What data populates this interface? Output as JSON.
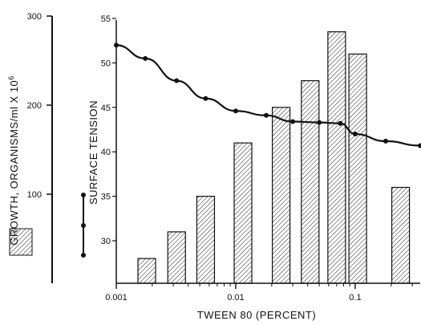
{
  "chart_data": {
    "type": "bar",
    "title": "",
    "xlabel": "TWEEN 80 (PERCENT)",
    "x_scale": "log",
    "xlim": [
      0.001,
      0.35
    ],
    "x_ticks": [
      {
        "value": 0.001,
        "label": "0.001"
      },
      {
        "value": 0.01,
        "label": "0.01"
      },
      {
        "value": 0.1,
        "label": "0.1"
      }
    ],
    "left_axis": {
      "label": "GROWTH, ORGANISMS/ml X 10",
      "label_exponent": "6",
      "range": [
        0,
        300
      ],
      "ticks": [
        {
          "value": 100,
          "label": "100"
        },
        {
          "value": 200,
          "label": "200"
        },
        {
          "value": 300,
          "label": "300"
        }
      ]
    },
    "right_axis": {
      "label": "SURFACE TENSION",
      "range": [
        25,
        55
      ],
      "ticks": [
        {
          "value": 30,
          "label": "30"
        },
        {
          "value": 35,
          "label": "35"
        },
        {
          "value": 40,
          "label": "40"
        },
        {
          "value": 45,
          "label": "45"
        },
        {
          "value": 50,
          "label": "50"
        },
        {
          "value": 55,
          "label": "55"
        }
      ]
    },
    "series": [
      {
        "type": "bar",
        "axis": "surface-tension-scale",
        "x": [
          0.0018,
          0.0032,
          0.0056,
          0.0115,
          0.024,
          0.042,
          0.07,
          0.105,
          0.24
        ],
        "values": [
          28,
          31,
          35,
          41,
          45,
          48,
          53.5,
          51,
          36
        ]
      },
      {
        "type": "line",
        "axis": "surface-tension-scale",
        "x": [
          0.001,
          0.00175,
          0.0032,
          0.0056,
          0.01,
          0.018,
          0.03,
          0.05,
          0.075,
          0.1,
          0.18,
          0.35
        ],
        "values": [
          52,
          50.5,
          48,
          46,
          44.6,
          44.1,
          43.4,
          43.3,
          43.2,
          42,
          41.2,
          40.7
        ]
      }
    ],
    "legend": {
      "placement": "left",
      "entries": [
        {
          "symbol": "hatched-box",
          "meaning": "growth"
        },
        {
          "symbol": "dot-line",
          "meaning": "surface tension"
        }
      ]
    },
    "colors": {
      "ink": "#111111",
      "background": "#ffffff"
    }
  }
}
